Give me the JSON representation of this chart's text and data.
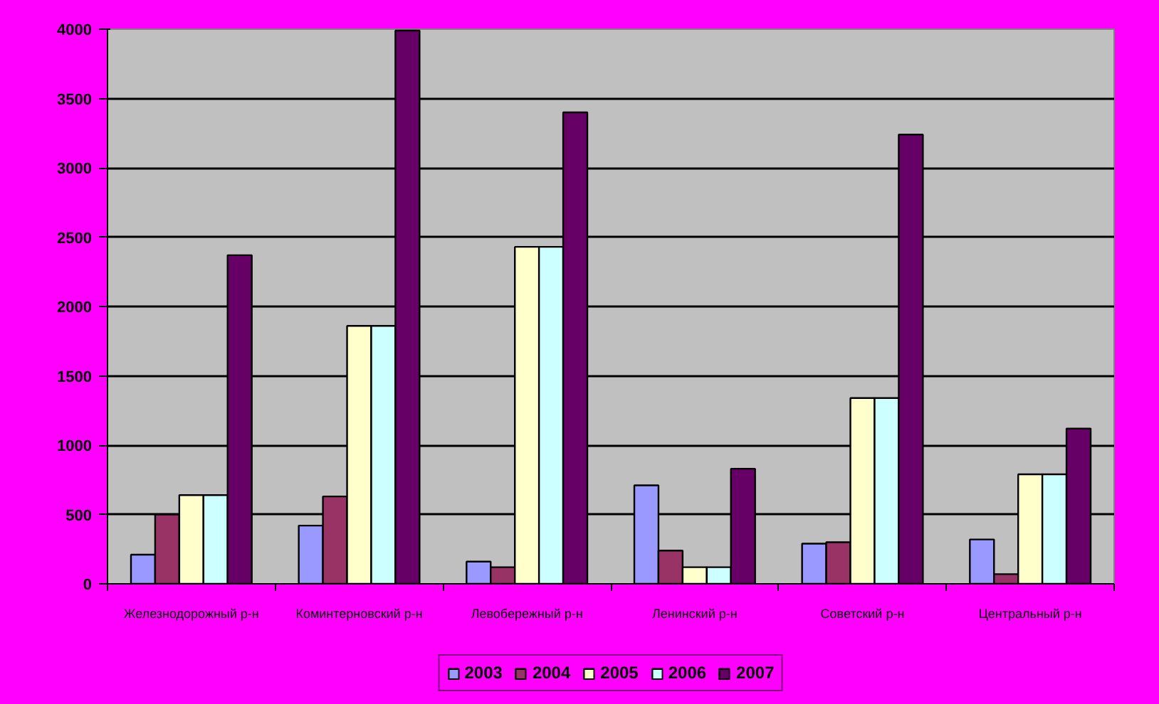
{
  "chart_data": {
    "type": "bar",
    "categories": [
      "Железнодорожный р-н",
      "Коминтерновский р-н",
      "Левобережный р-н",
      "Ленинский р-н",
      "Советский р-н",
      "Центральный р-н"
    ],
    "series": [
      {
        "name": "2003",
        "color": "#9999ff",
        "values": [
          210,
          420,
          160,
          710,
          290,
          320
        ]
      },
      {
        "name": "2004",
        "color": "#993366",
        "values": [
          500,
          630,
          120,
          240,
          300,
          70
        ]
      },
      {
        "name": "2005",
        "color": "#ffffcc",
        "values": [
          640,
          1860,
          2430,
          120,
          1340,
          790
        ]
      },
      {
        "name": "2006",
        "color": "#ccffff",
        "values": [
          640,
          1860,
          2430,
          120,
          1340,
          790
        ]
      },
      {
        "name": "2007",
        "color": "#660066",
        "values": [
          2370,
          3990,
          3400,
          830,
          3240,
          1120
        ]
      }
    ],
    "ylim": [
      0,
      4000
    ],
    "yticks": [
      0,
      500,
      1000,
      1500,
      2000,
      2500,
      3000,
      3500,
      4000
    ],
    "grid": "y",
    "legend": "bottom"
  }
}
